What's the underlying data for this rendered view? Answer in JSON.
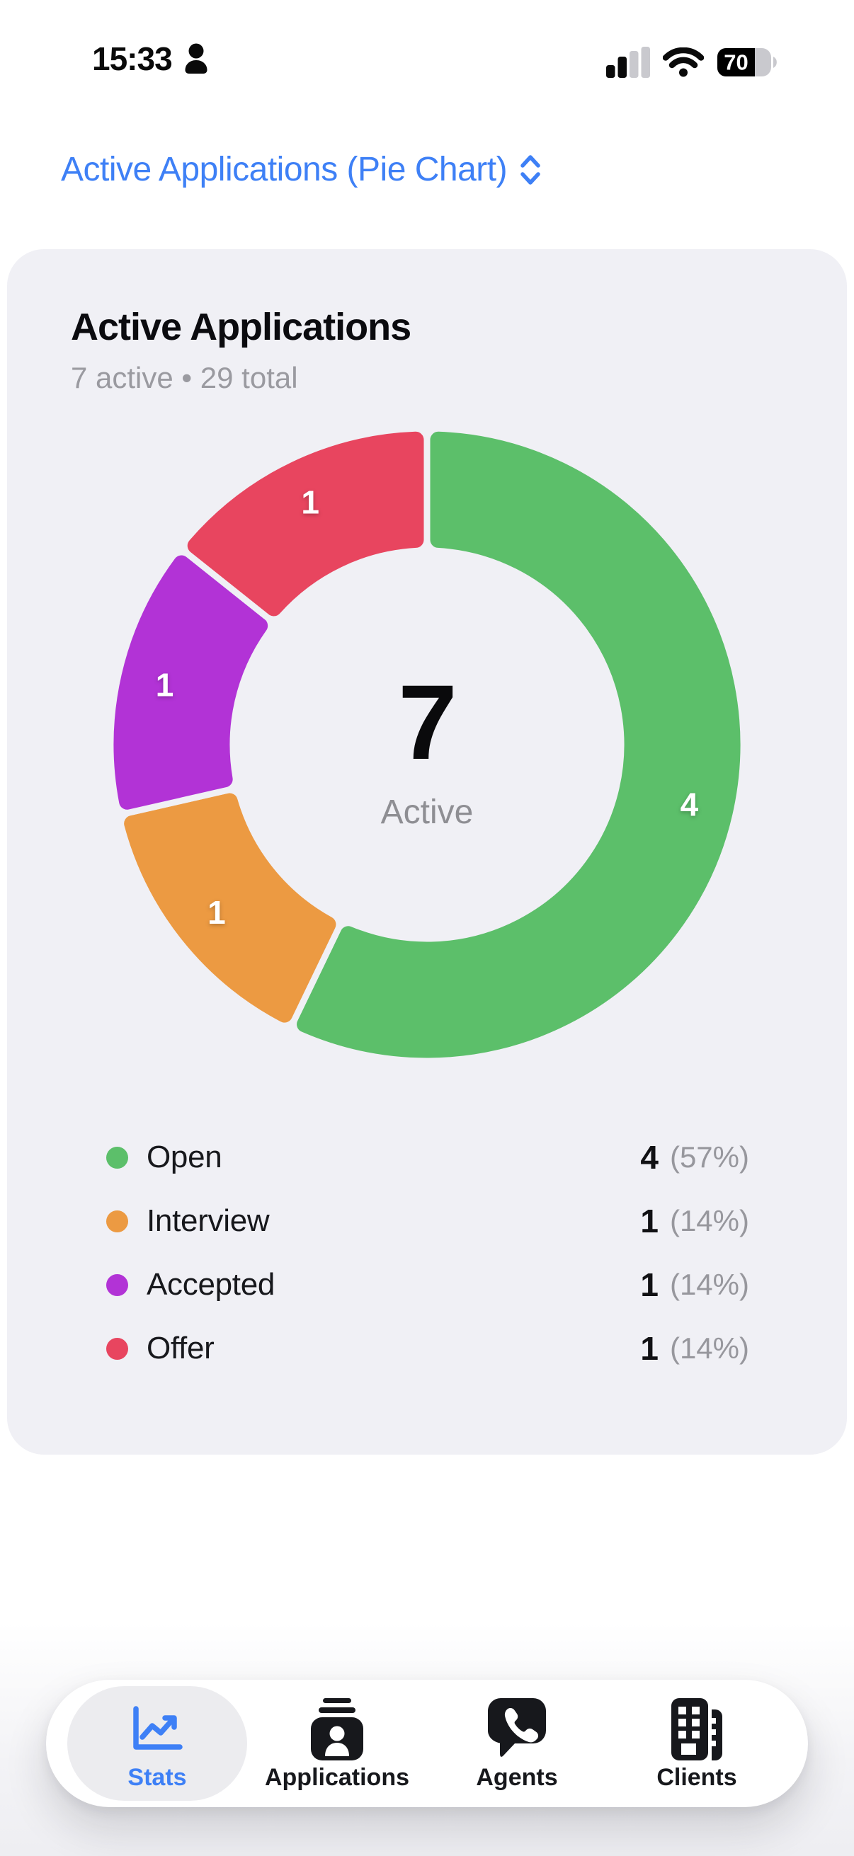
{
  "theme": {
    "accent_blue": "#3E80F6",
    "page_bg": "#FFFFFF",
    "card_bg": "#F0F0F5",
    "tab_active_bg": "#ECECEF"
  },
  "status_bar": {
    "time": "15:33",
    "person_icon": "person-icon",
    "cellular_icon": "cellular-signal-icon",
    "wifi_icon": "wifi-icon",
    "battery_icon": "battery-icon",
    "battery_percent": "70"
  },
  "picker": {
    "label": "Active Applications (Pie Chart)",
    "icon": "chevron-up-down-icon"
  },
  "card": {
    "title": "Active Applications",
    "subtitle": "7 active • 29 total",
    "center_value": "7",
    "center_label": "Active"
  },
  "chart_data": {
    "type": "pie",
    "donut": true,
    "title": "Active Applications",
    "subtitle": "7 active • 29 total",
    "center_value": 7,
    "center_label": "Active",
    "categories": [
      "Open",
      "Interview",
      "Accepted",
      "Offer"
    ],
    "values": [
      4,
      1,
      1,
      1
    ],
    "percents": [
      57,
      14,
      14,
      14
    ],
    "colors": [
      "#5CBF6A",
      "#EC9A42",
      "#B233D6",
      "#E8455F"
    ],
    "slice_value_labels": [
      "4",
      "1",
      "1",
      "1"
    ],
    "start_angle_deg": 0,
    "direction": "clockwise",
    "legend_position": "bottom"
  },
  "legend": {
    "items": [
      {
        "label": "Open",
        "value": "4",
        "percent": "(57%)",
        "color": "#5CBF6A"
      },
      {
        "label": "Interview",
        "value": "1",
        "percent": "(14%)",
        "color": "#EC9A42"
      },
      {
        "label": "Accepted",
        "value": "1",
        "percent": "(14%)",
        "color": "#B233D6"
      },
      {
        "label": "Offer",
        "value": "1",
        "percent": "(14%)",
        "color": "#E8455F"
      }
    ]
  },
  "tabbar": {
    "items": [
      {
        "label": "Stats",
        "icon": "line-chart-icon",
        "active": true
      },
      {
        "label": "Applications",
        "icon": "id-badge-icon",
        "active": false
      },
      {
        "label": "Agents",
        "icon": "phone-chat-icon",
        "active": false
      },
      {
        "label": "Clients",
        "icon": "buildings-icon",
        "active": false
      }
    ]
  }
}
